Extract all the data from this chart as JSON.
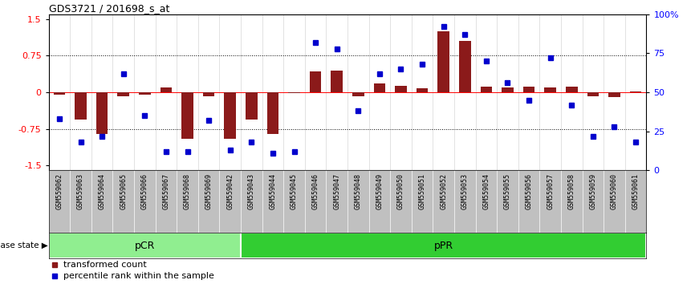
{
  "title": "GDS3721 / 201698_s_at",
  "samples": [
    "GSM559062",
    "GSM559063",
    "GSM559064",
    "GSM559065",
    "GSM559066",
    "GSM559067",
    "GSM559068",
    "GSM559069",
    "GSM559042",
    "GSM559043",
    "GSM559044",
    "GSM559045",
    "GSM559046",
    "GSM559047",
    "GSM559048",
    "GSM559049",
    "GSM559050",
    "GSM559051",
    "GSM559052",
    "GSM559053",
    "GSM559054",
    "GSM559055",
    "GSM559056",
    "GSM559057",
    "GSM559058",
    "GSM559059",
    "GSM559060",
    "GSM559061"
  ],
  "transformed_count": [
    -0.05,
    -0.55,
    -0.85,
    -0.08,
    -0.05,
    0.1,
    -0.95,
    -0.08,
    -0.95,
    -0.55,
    -0.85,
    -0.02,
    0.42,
    0.45,
    -0.08,
    0.18,
    0.14,
    0.08,
    1.25,
    1.05,
    0.12,
    0.1,
    0.12,
    0.1,
    0.12,
    -0.08,
    -0.1,
    0.02
  ],
  "percentile_rank": [
    33,
    18,
    22,
    62,
    35,
    12,
    12,
    32,
    13,
    18,
    11,
    12,
    82,
    78,
    38,
    62,
    65,
    68,
    92,
    87,
    70,
    56,
    45,
    72,
    42,
    22,
    28,
    18
  ],
  "pcr_count": 9,
  "ppr_count": 19,
  "bar_color": "#8B1A1A",
  "dot_color": "#0000CD",
  "pcr_color": "#90EE90",
  "ppr_color": "#32CD32",
  "label_bg_color": "#C0C0C0",
  "ylim": [
    -1.6,
    1.6
  ],
  "yticks_left": [
    -1.5,
    -0.75,
    0,
    0.75,
    1.5
  ],
  "yticks_right": [
    0,
    25,
    50,
    75,
    100
  ],
  "hlines": [
    -0.75,
    0,
    0.75
  ],
  "legend_items": [
    "transformed count",
    "percentile rank within the sample"
  ]
}
